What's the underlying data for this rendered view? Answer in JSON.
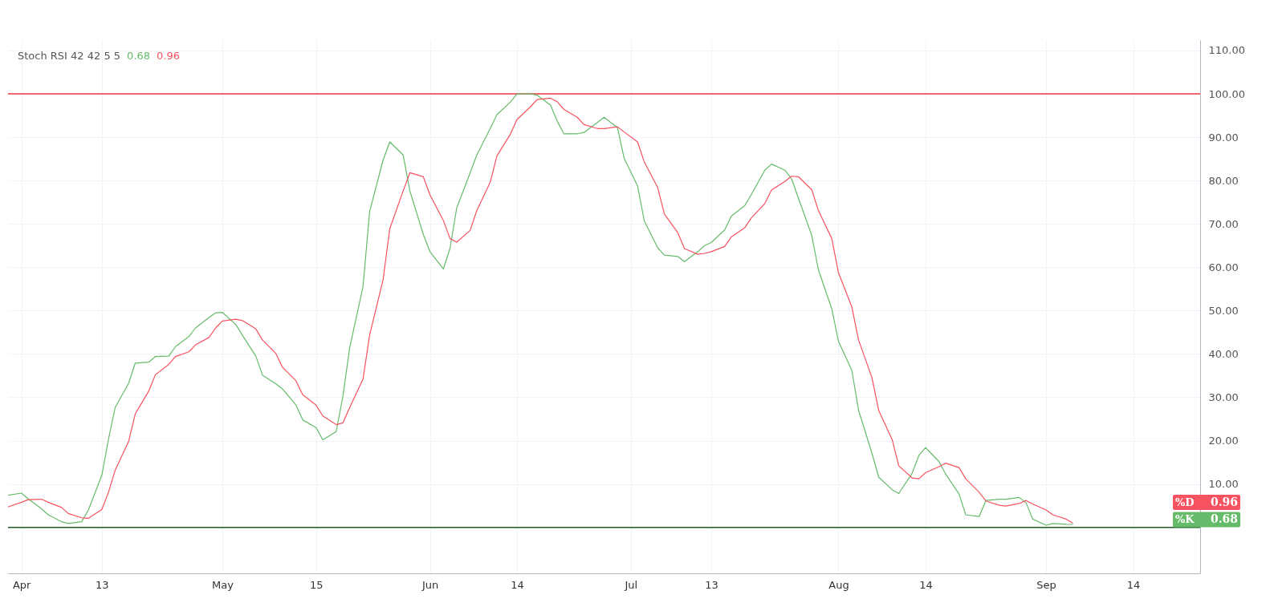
{
  "chart_data": {
    "type": "line",
    "title": "Stoch RSI 42 42 5 5",
    "x": [
      "--03-30",
      "--04-01",
      "--04-02",
      "--04-04",
      "--04-05",
      "--04-07",
      "--04-08",
      "--04-10",
      "--04-11",
      "--04-13",
      "--04-14",
      "--04-15",
      "--04-17",
      "--04-18",
      "--04-20",
      "--04-21",
      "--04-23",
      "--04-24",
      "--04-26",
      "--04-27",
      "--04-29",
      "--04-30",
      "--05-01",
      "--05-03",
      "--05-04",
      "--05-06",
      "--05-07",
      "--05-09",
      "--05-10",
      "--05-12",
      "--05-13",
      "--05-15",
      "--05-16",
      "--05-18",
      "--05-19",
      "--05-20",
      "--05-22",
      "--05-23",
      "--05-25",
      "--05-26",
      "--05-28",
      "--05-29",
      "--05-31",
      "--06-01",
      "--06-03",
      "--06-04",
      "--06-05",
      "--06-07",
      "--06-08",
      "--06-10",
      "--06-11",
      "--06-13",
      "--06-14",
      "--06-16",
      "--06-17",
      "--06-19",
      "--06-20",
      "--06-21",
      "--06-23",
      "--06-24",
      "--06-26",
      "--06-27",
      "--06-29",
      "--06-30",
      "--07-02",
      "--07-03",
      "--07-05",
      "--07-06",
      "--07-08",
      "--07-09",
      "--07-11",
      "--07-12",
      "--07-13",
      "--07-15",
      "--07-16",
      "--07-18",
      "--07-19",
      "--07-21",
      "--07-22",
      "--07-24",
      "--07-25",
      "--07-26",
      "--07-28",
      "--07-29",
      "--07-31",
      "--08-01",
      "--08-03",
      "--08-04",
      "--08-06",
      "--08-07",
      "--08-09",
      "--08-10",
      "--08-12",
      "--08-13",
      "--08-14",
      "--08-16",
      "--08-17",
      "--08-19",
      "--08-20",
      "--08-22",
      "--08-23",
      "--08-25",
      "--08-26",
      "--08-28",
      "--08-29",
      "--08-30",
      "--09-01",
      "--09-02",
      "--09-04",
      "--09-05"
    ],
    "series": [
      {
        "name": "%K",
        "color": "#66bb6a",
        "values": [
          7.4,
          7.9,
          6.6,
          4.3,
          2.9,
          1.3,
          0.9,
          1.3,
          4.0,
          12.0,
          20.3,
          27.7,
          33.2,
          37.9,
          38.1,
          39.4,
          39.5,
          41.7,
          44.0,
          46.0,
          48.4,
          49.5,
          49.6,
          46.8,
          44.3,
          39.5,
          35.1,
          33.1,
          31.9,
          28.2,
          24.8,
          23.0,
          20.2,
          22.1,
          30.2,
          41.3,
          55.5,
          72.9,
          84.7,
          88.9,
          85.9,
          77.6,
          67.6,
          63.6,
          59.6,
          64.4,
          73.7,
          81.8,
          85.9,
          92.0,
          95.2,
          98.1,
          100,
          100,
          99.7,
          97.4,
          93.7,
          90.8,
          90.8,
          91.1,
          93.4,
          94.6,
          92.2,
          85.1,
          78.8,
          70.7,
          64.5,
          62.8,
          62.5,
          61.3,
          63.6,
          65.0,
          65.7,
          68.6,
          71.8,
          74.2,
          76.8,
          82.4,
          83.8,
          82.4,
          80.4,
          76.0,
          67.4,
          59.4,
          50.4,
          42.9,
          36.2,
          27.0,
          17.1,
          11.6,
          8.7,
          7.8,
          12.5,
          16.6,
          18.4,
          15.2,
          12.3,
          7.7,
          2.9,
          2.5,
          6.2,
          6.5,
          6.5,
          6.9,
          5.7,
          1.9,
          0.5,
          0.9,
          0.7,
          0.68
        ]
      },
      {
        "name": "%D",
        "color": "#f7525f",
        "values": [
          4.7,
          5.8,
          6.4,
          6.5,
          5.8,
          4.6,
          3.2,
          2.2,
          2.1,
          4.1,
          8.1,
          13.2,
          19.8,
          26.2,
          31.4,
          35.2,
          37.6,
          39.4,
          40.5,
          42.1,
          43.8,
          46.0,
          47.6,
          48.0,
          47.7,
          45.8,
          43.2,
          40.1,
          36.9,
          33.8,
          30.6,
          28.2,
          25.7,
          23.7,
          24.1,
          27.6,
          34.2,
          44.4,
          57.1,
          68.9,
          77.6,
          81.8,
          80.9,
          76.7,
          70.8,
          66.6,
          65.8,
          68.5,
          73.1,
          79.6,
          85.7,
          90.7,
          94.1,
          97.0,
          98.7,
          99.0,
          98.2,
          96.4,
          94.6,
          92.9,
          92.0,
          92.0,
          92.4,
          91.2,
          88.9,
          84.3,
          78.4,
          72.3,
          68.0,
          64.3,
          63.0,
          63.2,
          63.6,
          64.8,
          67.0,
          69.1,
          71.4,
          74.7,
          77.8,
          79.8,
          81.0,
          80.9,
          77.9,
          73.1,
          66.6,
          58.7,
          50.8,
          43.2,
          34.5,
          27.0,
          20.3,
          14.2,
          11.4,
          11.2,
          12.6,
          14.0,
          14.8,
          13.8,
          11.2,
          8.1,
          6.1,
          5.1,
          4.9,
          5.5,
          6.2,
          5.4,
          4.0,
          2.9,
          1.9,
          0.96
        ]
      }
    ],
    "xlim": [
      "--03-30",
      "--09-24"
    ],
    "xticks": [
      {
        "value": "--04-01",
        "label": "Apr"
      },
      {
        "value": "--04-13",
        "label": "13"
      },
      {
        "value": "--05-01",
        "label": "May"
      },
      {
        "value": "--05-15",
        "label": "15"
      },
      {
        "value": "--06-01",
        "label": "Jun"
      },
      {
        "value": "--06-14",
        "label": "14"
      },
      {
        "value": "--07-01",
        "label": "Jul"
      },
      {
        "value": "--07-13",
        "label": "13"
      },
      {
        "value": "--08-01",
        "label": "Aug"
      },
      {
        "value": "--08-14",
        "label": "14"
      },
      {
        "value": "--09-01",
        "label": "Sep"
      },
      {
        "value": "--09-14",
        "label": "14"
      }
    ],
    "ylim": [
      -10.6,
      112.4
    ],
    "yticks": [
      {
        "value": 10,
        "label": "10.00"
      },
      {
        "value": 20,
        "label": "20.00"
      },
      {
        "value": 30,
        "label": "30.00"
      },
      {
        "value": 40,
        "label": "40.00"
      },
      {
        "value": 50,
        "label": "50.00"
      },
      {
        "value": 60,
        "label": "60.00"
      },
      {
        "value": 70,
        "label": "70.00"
      },
      {
        "value": 80,
        "label": "80.00"
      },
      {
        "value": 90,
        "label": "90.00"
      },
      {
        "value": 100,
        "label": "100.00"
      },
      {
        "value": 110,
        "label": "110.00"
      }
    ],
    "grid": true,
    "annotations": [
      "0.68",
      "0.96"
    ],
    "ref_lines": [
      {
        "axis": "y",
        "value": 100,
        "label": null,
        "color": "#f23645"
      },
      {
        "axis": "y",
        "value": 0,
        "label": null,
        "color": "#1b5e20"
      }
    ]
  }
}
